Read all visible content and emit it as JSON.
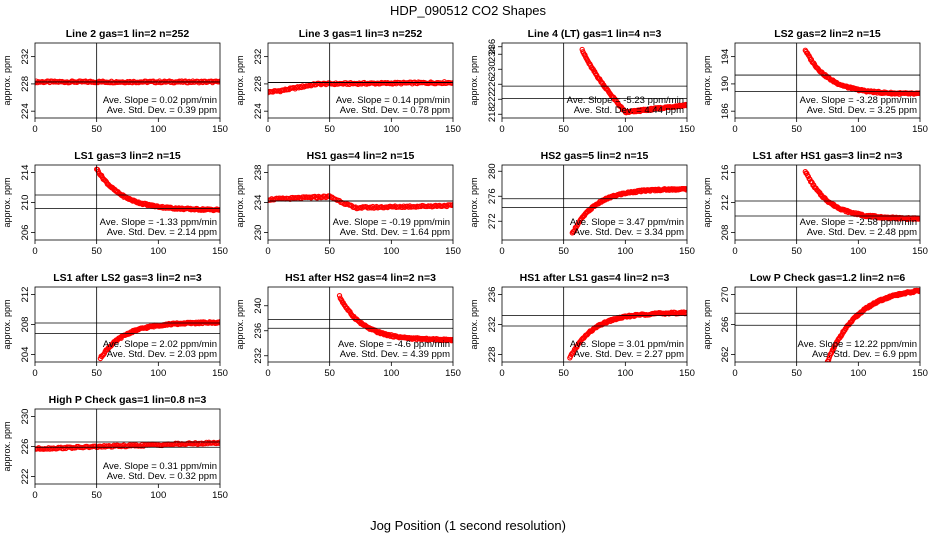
{
  "figure": {
    "title": "HDP_090512  CO2 Shapes",
    "xlabel": "Jog Position (1 second resolution)",
    "ylabel": "approx. ppm",
    "marker_color": "#ff0000",
    "annotation_templates": {
      "slope": "Ave. Slope = ",
      "slope_unit": " ppm/min",
      "std": "Ave. Std. Dev. = ",
      "std_unit": " ppm"
    }
  },
  "chart_data": [
    {
      "type": "scatter",
      "title": "Line 2 gas=1 lin=2 n=252",
      "xlim": [
        0,
        150
      ],
      "ylim": [
        223,
        234
      ],
      "xticks": [
        0,
        50,
        100,
        150
      ],
      "yticks": [
        224,
        228,
        232
      ],
      "vline": 50,
      "hlines": [
        228.3,
        228.3
      ],
      "slope": "0.02",
      "std": "0.39",
      "series": [
        {
          "x": [
            0,
            150
          ],
          "y": [
            228.3,
            228.3
          ],
          "shape": "flat"
        }
      ]
    },
    {
      "type": "scatter",
      "title": "Line 3 gas=1 lin=3 n=252",
      "xlim": [
        0,
        150
      ],
      "ylim": [
        223,
        234
      ],
      "xticks": [
        0,
        50,
        100,
        150
      ],
      "yticks": [
        224,
        228,
        232
      ],
      "vline": 50,
      "hlines": [
        228.2,
        228.2
      ],
      "slope": "0.14",
      "std": "0.78",
      "series": [
        {
          "x": [
            0,
            10,
            40,
            150
          ],
          "y": [
            226.8,
            227.0,
            228.0,
            228.2
          ],
          "shape": "rise_early"
        }
      ]
    },
    {
      "type": "scatter",
      "title": "Line 4 (LT) gas=1 lin=4 n=3",
      "xlim": [
        0,
        150
      ],
      "ylim": [
        217,
        237
      ],
      "xticks": [
        0,
        50,
        100,
        150
      ],
      "yticks": [
        218,
        222,
        226,
        230,
        234,
        236
      ],
      "vline": 50,
      "hlines": [
        225.5,
        222.2
      ],
      "slope": "-5.23",
      "std": "4.44",
      "series": [
        {
          "x": [
            65,
            100,
            150
          ],
          "y": [
            235.5,
            218.5,
            220.5
          ],
          "shape": "drop_recover"
        }
      ]
    },
    {
      "type": "scatter",
      "title": "LS2 gas=2 lin=2 n=15",
      "xlim": [
        0,
        150
      ],
      "ylim": [
        185,
        196
      ],
      "xticks": [
        0,
        50,
        100,
        150
      ],
      "yticks": [
        186,
        190,
        194
      ],
      "vline": 50,
      "hlines": [
        191.3,
        188.9
      ],
      "slope": "-3.28",
      "std": "3.25",
      "series": [
        {
          "x": [
            57,
            150
          ],
          "y": [
            195,
            188.5
          ],
          "shape": "decay"
        }
      ]
    },
    {
      "type": "scatter",
      "title": "LS1 gas=3 lin=2 n=15",
      "xlim": [
        0,
        150
      ],
      "ylim": [
        205,
        215
      ],
      "xticks": [
        0,
        50,
        100,
        150
      ],
      "yticks": [
        206,
        210,
        214
      ],
      "vline": 50,
      "hlines": [
        211,
        209.2
      ],
      "slope": "-1.33",
      "std": "2.14",
      "series": [
        {
          "x": [
            50,
            150
          ],
          "y": [
            214.5,
            209
          ],
          "shape": "decay"
        }
      ]
    },
    {
      "type": "scatter",
      "title": "HS1 gas=4 lin=2 n=15",
      "xlim": [
        0,
        150
      ],
      "ylim": [
        229,
        239
      ],
      "xticks": [
        0,
        50,
        100,
        150
      ],
      "yticks": [
        230,
        234,
        238
      ],
      "vline": 50,
      "hlines": [
        234.2,
        234.2
      ],
      "slope": "-0.19",
      "std": "1.64",
      "series": [
        {
          "x": [
            0,
            50,
            70,
            150
          ],
          "y": [
            234.4,
            234.8,
            233.3,
            233.6
          ],
          "shape": "step_down"
        }
      ]
    },
    {
      "type": "scatter",
      "title": "HS2 gas=5 lin=2 n=15",
      "xlim": [
        0,
        150
      ],
      "ylim": [
        269,
        281
      ],
      "xticks": [
        0,
        50,
        100,
        150
      ],
      "yticks": [
        272,
        276,
        280
      ],
      "vline": 50,
      "hlines": [
        275.6,
        274.2
      ],
      "slope": "3.47",
      "std": "3.34",
      "series": [
        {
          "x": [
            57,
            150
          ],
          "y": [
            270,
            277.2
          ],
          "shape": "rise"
        }
      ]
    },
    {
      "type": "scatter",
      "title": "LS1 after HS1 gas=3 lin=2 n=3",
      "xlim": [
        0,
        150
      ],
      "ylim": [
        207,
        217
      ],
      "xticks": [
        0,
        50,
        100,
        150
      ],
      "yticks": [
        208,
        212,
        216
      ],
      "vline": 50,
      "hlines": [
        212.2,
        210.2
      ],
      "slope": "-2.58",
      "std": "2.48",
      "series": [
        {
          "x": [
            57,
            150
          ],
          "y": [
            216.2,
            209.8
          ],
          "shape": "decay"
        }
      ]
    },
    {
      "type": "scatter",
      "title": "LS1 after LS2 gas=3 lin=2 n=3",
      "xlim": [
        0,
        150
      ],
      "ylim": [
        203,
        213
      ],
      "xticks": [
        0,
        50,
        100,
        150
      ],
      "yticks": [
        204,
        208,
        212
      ],
      "vline": 50,
      "hlines": [
        208.2,
        206.8
      ],
      "slope": "2.02",
      "std": "2.03",
      "series": [
        {
          "x": [
            53,
            150
          ],
          "y": [
            203.5,
            208.3
          ],
          "shape": "rise"
        }
      ]
    },
    {
      "type": "scatter",
      "title": "HS1 after HS2 gas=4 lin=2 n=3",
      "xlim": [
        0,
        150
      ],
      "ylim": [
        231,
        243
      ],
      "xticks": [
        0,
        50,
        100,
        150
      ],
      "yticks": [
        232,
        236,
        240
      ],
      "vline": 50,
      "hlines": [
        237.8,
        236.4
      ],
      "slope": "-4.6",
      "std": "4.39",
      "series": [
        {
          "x": [
            58,
            150
          ],
          "y": [
            241.5,
            234.5
          ],
          "shape": "decay"
        }
      ]
    },
    {
      "type": "scatter",
      "title": "HS1 after LS1 gas=4 lin=2 n=3",
      "xlim": [
        0,
        150
      ],
      "ylim": [
        227,
        237
      ],
      "xticks": [
        0,
        50,
        100,
        150
      ],
      "yticks": [
        228,
        232,
        236
      ],
      "vline": 50,
      "hlines": [
        233.2,
        231.8
      ],
      "slope": "3.01",
      "std": "2.27",
      "series": [
        {
          "x": [
            55,
            150
          ],
          "y": [
            227.5,
            233.6
          ],
          "shape": "rise"
        }
      ]
    },
    {
      "type": "scatter",
      "title": "Low P Check gas=1.2 lin=2 n=6",
      "xlim": [
        0,
        150
      ],
      "ylim": [
        261,
        271
      ],
      "xticks": [
        0,
        50,
        100,
        150
      ],
      "yticks": [
        262,
        266,
        270
      ],
      "vline": 50,
      "hlines": [
        267.5,
        265.9
      ],
      "slope": "12.22",
      "std": "6.9",
      "series": [
        {
          "x": [
            75,
            150
          ],
          "y": [
            261,
            271
          ],
          "shape": "rise_slow"
        }
      ]
    },
    {
      "type": "scatter",
      "title": "High P Check gas=1 lin=0.8 n=3",
      "xlim": [
        0,
        150
      ],
      "ylim": [
        221,
        231
      ],
      "xticks": [
        0,
        50,
        100,
        150
      ],
      "yticks": [
        222,
        226,
        230
      ],
      "vline": 50,
      "hlines": [
        226.6,
        225.9
      ],
      "slope": "0.31",
      "std": "0.32",
      "series": [
        {
          "x": [
            0,
            150
          ],
          "y": [
            225.7,
            226.5
          ],
          "shape": "linear"
        }
      ]
    }
  ]
}
